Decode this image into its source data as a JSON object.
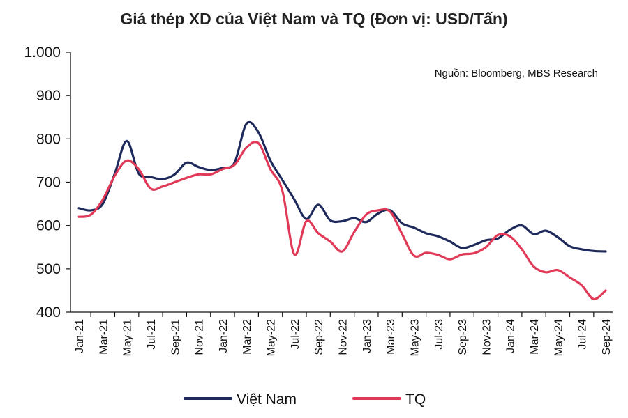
{
  "chart_data": {
    "type": "line",
    "title": "Giá thép XD của Việt Nam và TQ (Đơn vị: USD/Tấn)",
    "source": "Nguồn: Bloomberg, MBS Research",
    "xlabel": "",
    "ylabel": "",
    "ylim": [
      400,
      1000
    ],
    "yticks": [
      400,
      500,
      600,
      700,
      800,
      900,
      1000
    ],
    "ytick_labels": [
      "400",
      "500",
      "600",
      "700",
      "800",
      "900",
      "1.000"
    ],
    "xtick_labels": [
      "Jan-21",
      "Mar-21",
      "May-21",
      "Jul-21",
      "Sep-21",
      "Nov-21",
      "Jan-22",
      "Mar-22",
      "May-22",
      "Jul-22",
      "Sep-22",
      "Nov-22",
      "Jan-23",
      "Mar-23",
      "May-23",
      "Jul-23",
      "Sep-23",
      "Nov-23",
      "Jan-24",
      "Mar-24",
      "May-24",
      "Jul-24",
      "Sep-24"
    ],
    "x": [
      "Jan-21",
      "Feb-21",
      "Mar-21",
      "Apr-21",
      "May-21",
      "Jun-21",
      "Jul-21",
      "Aug-21",
      "Sep-21",
      "Oct-21",
      "Nov-21",
      "Dec-21",
      "Jan-22",
      "Feb-22",
      "Mar-22",
      "Apr-22",
      "May-22",
      "Jun-22",
      "Jul-22",
      "Aug-22",
      "Sep-22",
      "Oct-22",
      "Nov-22",
      "Dec-22",
      "Jan-23",
      "Feb-23",
      "Mar-23",
      "Apr-23",
      "May-23",
      "Jun-23",
      "Jul-23",
      "Aug-23",
      "Sep-23",
      "Oct-23",
      "Nov-23",
      "Dec-23",
      "Jan-24",
      "Feb-24",
      "Mar-24",
      "Apr-24",
      "May-24",
      "Jun-24",
      "Jul-24",
      "Aug-24",
      "Sep-24"
    ],
    "series": [
      {
        "name": "Việt Nam",
        "color": "#1f2a5c",
        "values": [
          640,
          635,
          650,
          720,
          795,
          720,
          712,
          707,
          718,
          745,
          735,
          728,
          733,
          745,
          835,
          815,
          750,
          705,
          660,
          615,
          648,
          612,
          610,
          617,
          608,
          628,
          635,
          605,
          595,
          582,
          575,
          563,
          548,
          555,
          566,
          570,
          590,
          600,
          580,
          588,
          573,
          552,
          545,
          541,
          540
        ]
      },
      {
        "name": "TQ",
        "color": "#e03a58",
        "values": [
          620,
          625,
          660,
          715,
          750,
          730,
          685,
          690,
          700,
          710,
          718,
          718,
          730,
          740,
          780,
          790,
          730,
          680,
          533,
          610,
          582,
          563,
          540,
          585,
          625,
          635,
          632,
          580,
          530,
          537,
          532,
          522,
          533,
          536,
          550,
          578,
          575,
          545,
          505,
          492,
          497,
          480,
          462,
          430,
          450
        ]
      }
    ],
    "legend": "bottom",
    "grid": false
  }
}
